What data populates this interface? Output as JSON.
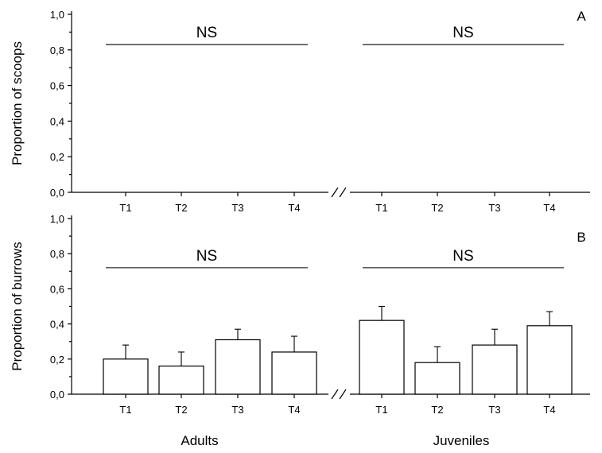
{
  "chart_data": [
    {
      "panel": "A",
      "type": "bar",
      "ylabel": "Proportion of scoops",
      "ylim": [
        0,
        1.0
      ],
      "yticks": [
        "0,0",
        "0,2",
        "0,4",
        "0,6",
        "0,8",
        "1,0"
      ],
      "groups": [
        {
          "name": "Adults",
          "categories": [
            "T1",
            "T2",
            "T3",
            "T4"
          ],
          "values": [
            0,
            0,
            0,
            0
          ],
          "errors": [
            0,
            0,
            0,
            0
          ],
          "annotation": "NS",
          "annotation_y": 0.83
        },
        {
          "name": "Juveniles",
          "categories": [
            "T1",
            "T2",
            "T3",
            "T4"
          ],
          "values": [
            0,
            0,
            0,
            0
          ],
          "errors": [
            0,
            0,
            0,
            0
          ],
          "annotation": "NS",
          "annotation_y": 0.83
        }
      ]
    },
    {
      "panel": "B",
      "type": "bar",
      "ylabel": "Proportion of burrows",
      "ylim": [
        0,
        1.0
      ],
      "yticks": [
        "0,0",
        "0,2",
        "0,4",
        "0,6",
        "0,8",
        "1,0"
      ],
      "groups": [
        {
          "name": "Adults",
          "categories": [
            "T1",
            "T2",
            "T3",
            "T4"
          ],
          "values": [
            0.2,
            0.16,
            0.31,
            0.24
          ],
          "errors": [
            0.08,
            0.08,
            0.06,
            0.09
          ],
          "annotation": "NS",
          "annotation_y": 0.72
        },
        {
          "name": "Juveniles",
          "categories": [
            "T1",
            "T2",
            "T3",
            "T4"
          ],
          "values": [
            0.42,
            0.18,
            0.28,
            0.39
          ],
          "errors": [
            0.08,
            0.09,
            0.09,
            0.08
          ],
          "annotation": "NS",
          "annotation_y": 0.72
        }
      ]
    }
  ],
  "group_labels": [
    "Adults",
    "Juveniles"
  ]
}
